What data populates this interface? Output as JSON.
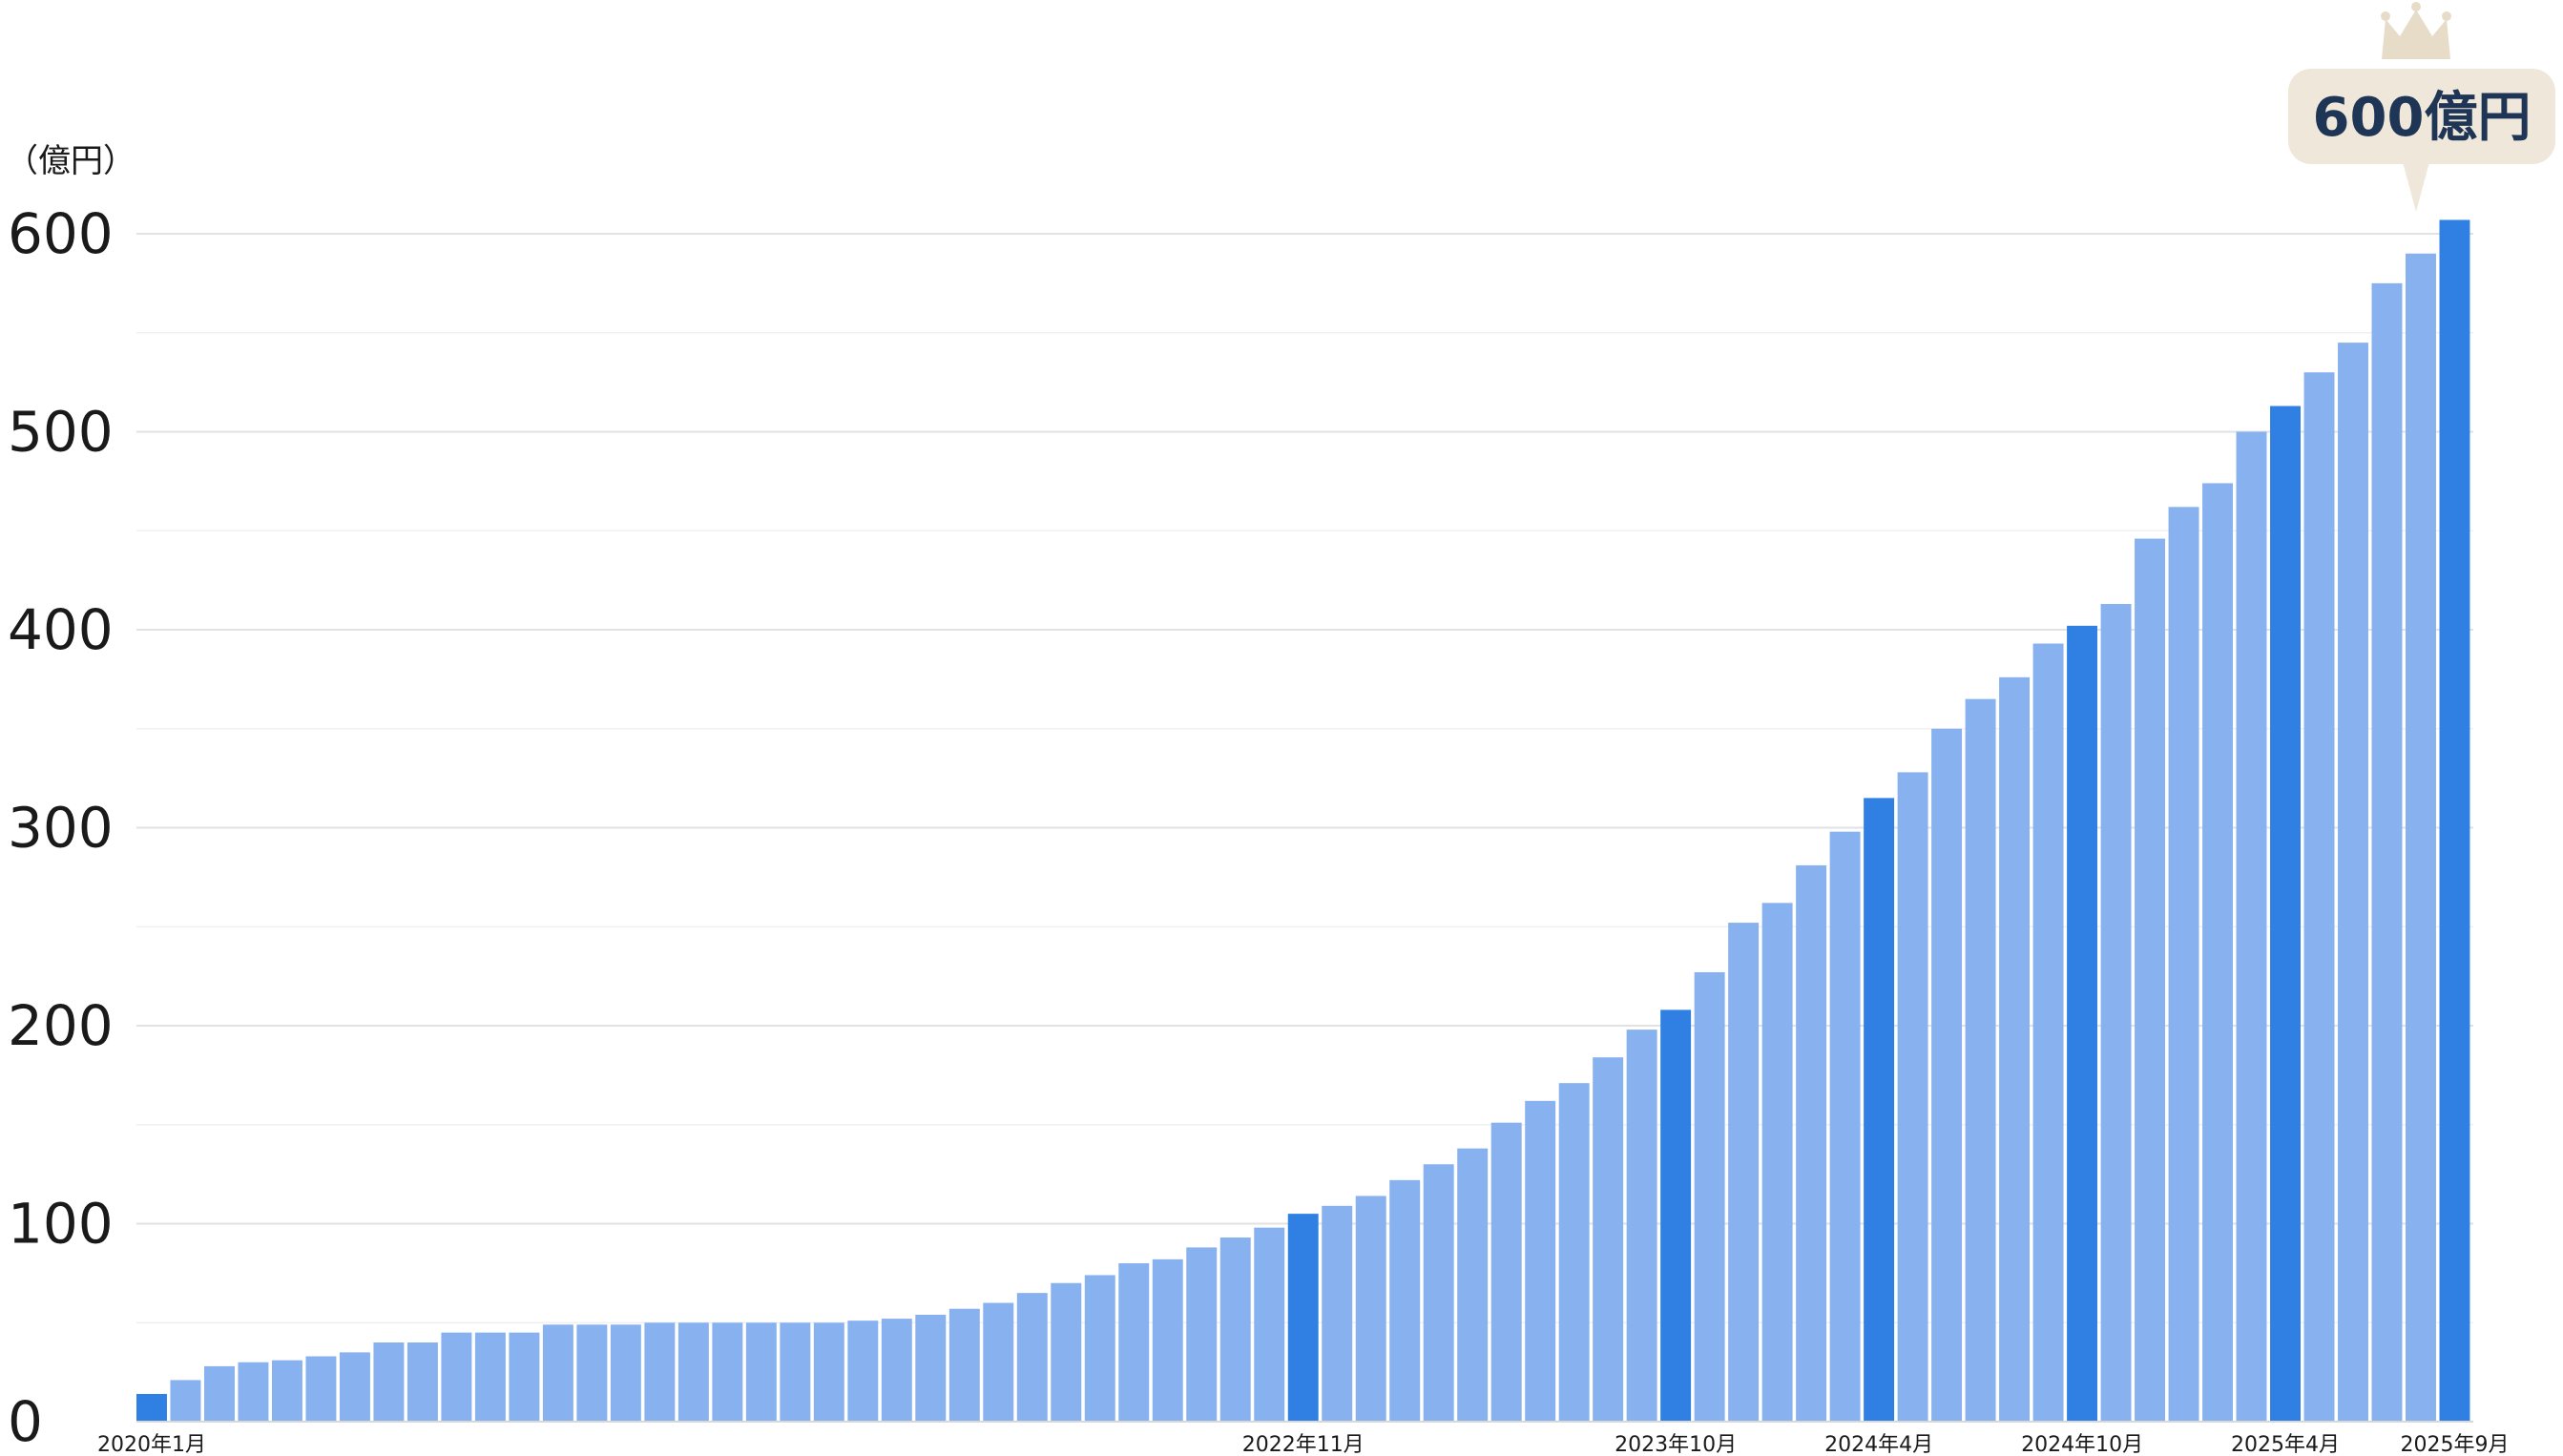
{
  "chart_data": {
    "type": "bar",
    "title": "",
    "xlabel": "",
    "ylabel": "（億円）",
    "ylim": [
      0,
      600
    ],
    "yticks": [
      "0",
      "100",
      "200",
      "300",
      "400",
      "500",
      "600"
    ],
    "grid": true,
    "start_month": "2020年1月",
    "x_labels": [
      {
        "index": 0,
        "text": "2020年1月"
      },
      {
        "index": 34,
        "text": "2022年11月"
      },
      {
        "index": 45,
        "text": "2023年10月"
      },
      {
        "index": 51,
        "text": "2024年4月"
      },
      {
        "index": 57,
        "text": "2024年10月"
      },
      {
        "index": 63,
        "text": "2025年4月"
      },
      {
        "index": 68,
        "text": "2025年9月"
      }
    ],
    "highlighted_indices": [
      0,
      34,
      45,
      51,
      57,
      63,
      68
    ],
    "values": [
      14,
      21,
      28,
      30,
      31,
      33,
      35,
      40,
      40,
      45,
      45,
      45,
      49,
      49,
      49,
      50,
      50,
      50,
      50,
      50,
      50,
      51,
      52,
      54,
      57,
      60,
      65,
      70,
      74,
      80,
      82,
      88,
      93,
      98,
      105,
      109,
      114,
      122,
      130,
      138,
      151,
      162,
      171,
      184,
      198,
      208,
      227,
      252,
      262,
      281,
      298,
      315,
      328,
      350,
      365,
      376,
      393,
      402,
      413,
      446,
      462,
      474,
      500,
      513,
      530,
      545,
      575,
      590,
      607
    ],
    "colors": {
      "bar": "#87b1ef",
      "highlight": "#2f80e2",
      "grid": "#e2e2e2",
      "callout": "#efe8da",
      "callout_text": "#1f3556",
      "crown": "#e7dcc8"
    },
    "callout": {
      "text": "600億円",
      "bar_index": 68
    }
  }
}
